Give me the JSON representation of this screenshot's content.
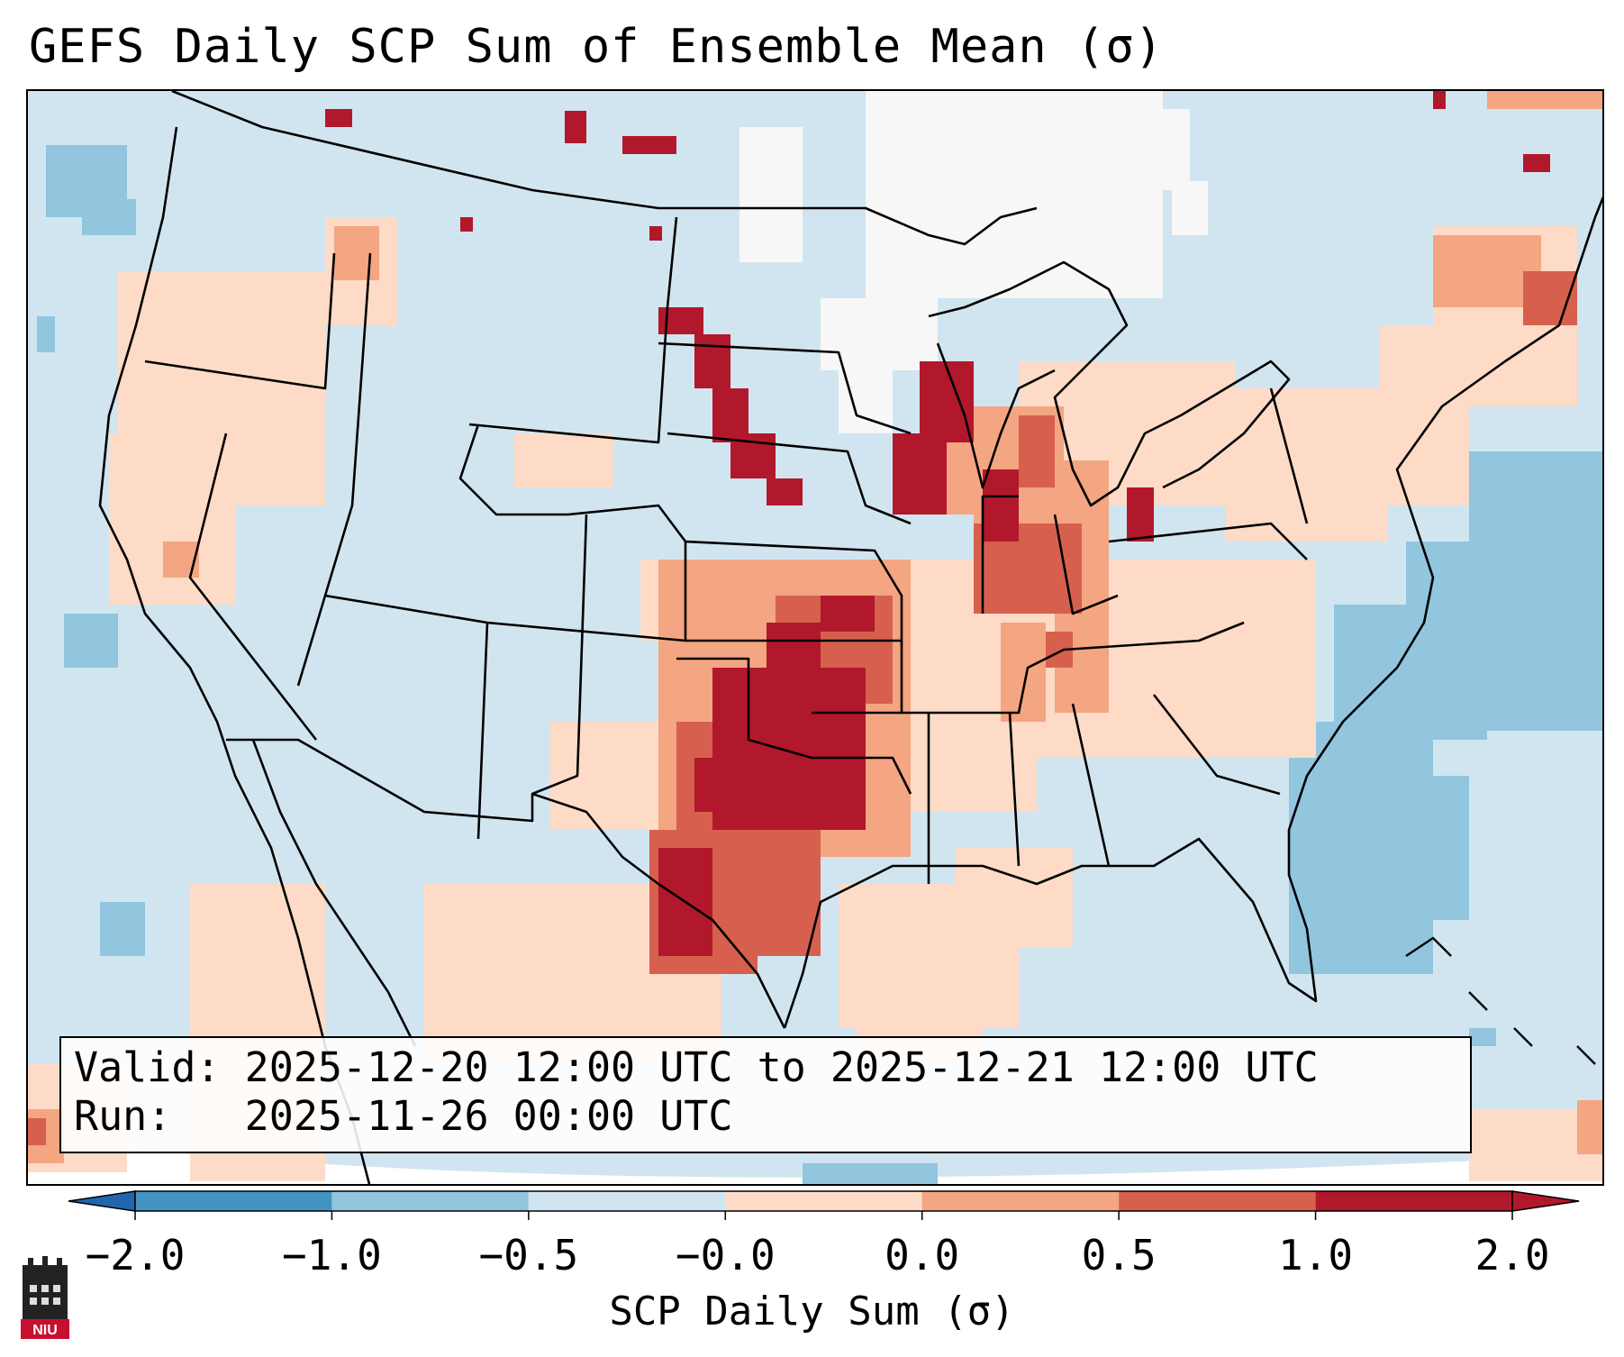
{
  "title": "GEFS Daily SCP Sum of Ensemble Mean (σ)",
  "info": {
    "valid_line": "Valid: 2025-12-20 12:00 UTC to 2025-12-21 12:00 UTC",
    "run_line": "Run:   2025-11-26 00:00 UTC"
  },
  "colorbar": {
    "label": "SCP Daily Sum (σ)",
    "ticks": [
      "−2.0",
      "−1.0",
      "−0.5",
      "−0.0",
      "0.0",
      "0.5",
      "1.0",
      "2.0"
    ],
    "colors": [
      "#4393c3",
      "#92c5de",
      "#d1e5f0",
      "#f7f7f7",
      "#fddbc7",
      "#f4a582",
      "#d6604d",
      "#b2182b"
    ],
    "extend": "both",
    "under_color": "#2166ac",
    "over_color": "#b2182b"
  },
  "map": {
    "background_color": "#d1e5f0",
    "features": [
      {
        "region": "Oklahoma / north Texas",
        "level": "≥ 2.0"
      },
      {
        "region": "West-central Texas",
        "level": "1.0–2.0"
      },
      {
        "region": "South Dakota / Nebraska streak",
        "level": "≥ 2.0"
      },
      {
        "region": "Wisconsin / Illinois / Iowa",
        "level": "≥ 2.0"
      },
      {
        "region": "Atlantic off Carolinas",
        "level": "−0.5 to −1.0"
      },
      {
        "region": "North Dakota / Minnesota / Ontario",
        "level": "−0.0"
      }
    ]
  },
  "logo": {
    "text": "NIU",
    "name": "NIU logo"
  }
}
